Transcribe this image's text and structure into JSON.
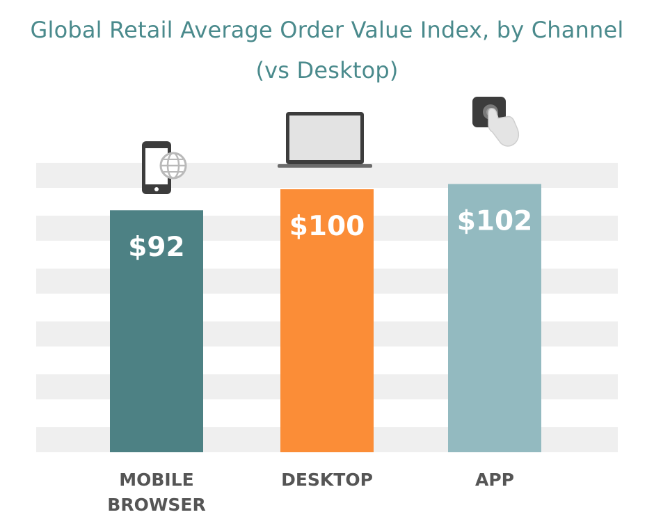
{
  "chart_data": {
    "type": "bar",
    "title": "Global Retail Average Order Value Index, by Channel",
    "subtitle": "(vs Desktop)",
    "categories": [
      [
        "MOBILE",
        "BROWSER"
      ],
      [
        "DESKTOP"
      ],
      [
        "APP"
      ]
    ],
    "values": [
      92,
      100,
      102
    ],
    "value_labels": [
      "$92",
      "$100",
      "$102"
    ],
    "colors": [
      "#4d8184",
      "#fb8d37",
      "#93bac0"
    ],
    "icons": [
      "smartphone-globe-icon",
      "laptop-icon",
      "app-touch-icon"
    ],
    "background": "horizontal striped bands",
    "stripe_color": "#efefef"
  }
}
